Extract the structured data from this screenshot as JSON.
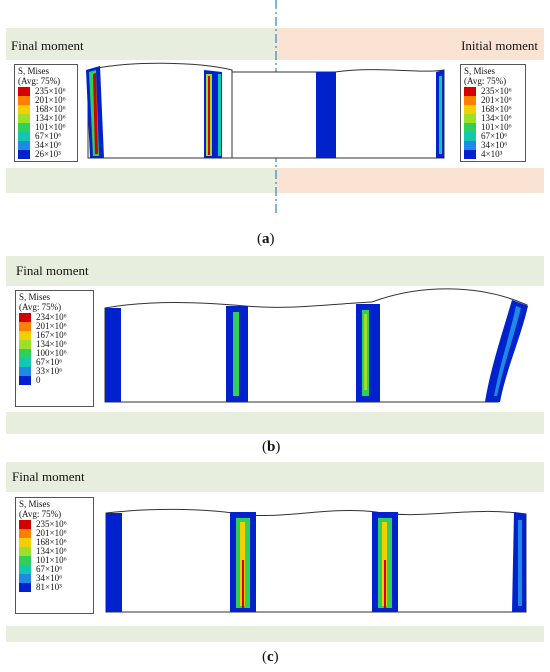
{
  "panel_a": {
    "left_title": "Final moment",
    "right_title": "Initial moment",
    "left_legend": {
      "header": [
        "S, Mises",
        "(Avg: 75%)"
      ],
      "labels": [
        "235×10⁶",
        "201×10⁶",
        "168×10⁶",
        "134×10⁶",
        "101×10⁶",
        "67×10⁶",
        "34×10⁶",
        "26×10³"
      ]
    },
    "right_legend": {
      "header": [
        "S, Mises",
        "(Avg: 75%)"
      ],
      "labels": [
        "235×10⁶",
        "201×10⁶",
        "168×10⁶",
        "134×10⁶",
        "101×10⁶",
        "67×10⁶",
        "34×10⁶",
        "4×10³"
      ]
    },
    "caption": "a",
    "colors": {
      "left_band": "#e8eedd",
      "right_band": "#fbe3d3",
      "divider": "#3a8ec6"
    }
  },
  "panel_b": {
    "title": "Final moment",
    "legend": {
      "header": [
        "S, Mises",
        "(Avg: 75%)"
      ],
      "labels": [
        "234×10⁶",
        "201×10⁶",
        "167×10⁶",
        "134×10⁶",
        "100×10⁶",
        "67×10⁶",
        "33×10⁶",
        "0"
      ]
    },
    "caption": "b"
  },
  "panel_c": {
    "title": "Final moment",
    "legend": {
      "header": [
        "S, Mises",
        "(Avg: 75%)"
      ],
      "labels": [
        "235×10⁶",
        "201×10⁶",
        "168×10⁶",
        "134×10⁶",
        "101×10⁶",
        "67×10⁶",
        "34×10⁶",
        "81×10³"
      ]
    },
    "caption": "c"
  },
  "colors": {
    "band": "#e8eedd",
    "scale": [
      "#d40000",
      "#ff7f00",
      "#f2d000",
      "#9de02a",
      "#2fd05a",
      "#12c8b0",
      "#1e8ae6",
      "#0022cc"
    ]
  }
}
